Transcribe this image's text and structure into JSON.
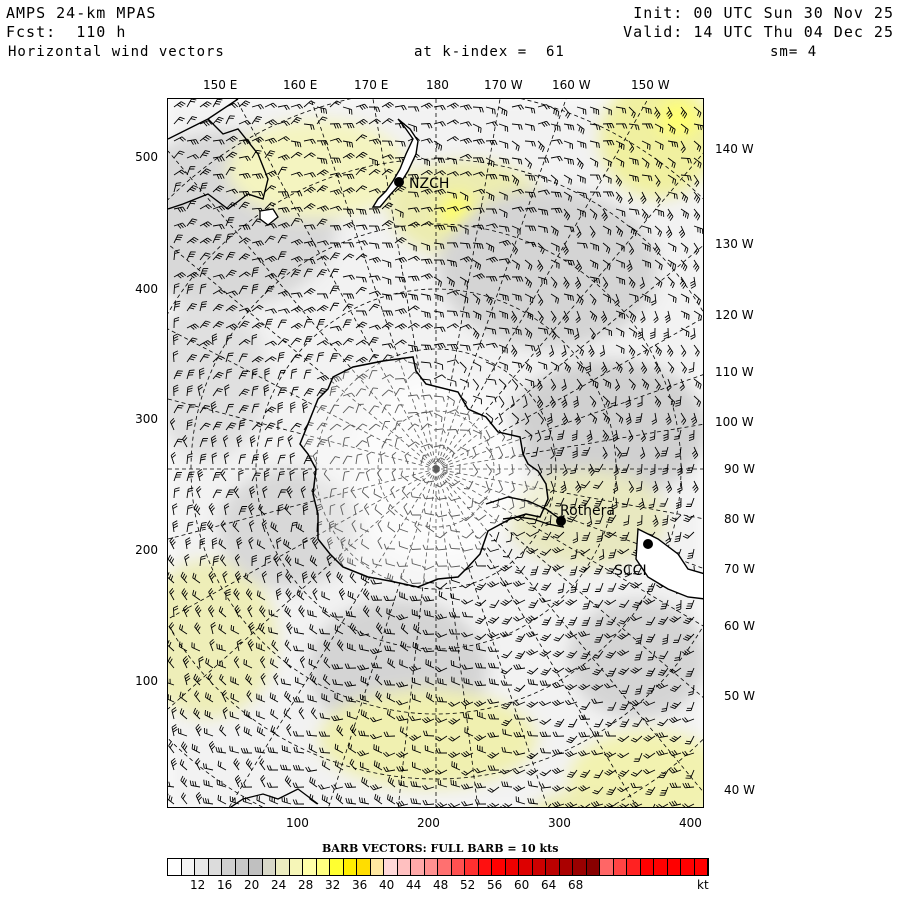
{
  "header": {
    "model": "AMPS 24-km MPAS",
    "fcst": "Fcst:  110 h",
    "field": "Horizontal wind vectors",
    "init": "Init: 00 UTC Sun 30 Nov 25",
    "valid": "Valid: 14 UTC Thu 04 Dec 25",
    "kindex": "at k-index =  61",
    "sm": "sm= 4"
  },
  "top_lon_labels": [
    "150 E",
    "160 E",
    "170 E",
    "180",
    "170 W",
    "160 W",
    "150 W"
  ],
  "right_lon_labels": [
    "140 W",
    "130 W",
    "120 W",
    "110 W",
    "100 W",
    "90 W",
    "80 W",
    "70 W",
    "60 W",
    "50 W",
    "40 W"
  ],
  "left_ticks": [
    "500",
    "400",
    "300",
    "200",
    "100"
  ],
  "bottom_ticks": [
    "100",
    "200",
    "300",
    "400"
  ],
  "stations": [
    {
      "id": "NZCH",
      "label": "NZCH"
    },
    {
      "id": "rothera",
      "label": "Rothera"
    },
    {
      "id": "scci",
      "label": "SCCI"
    }
  ],
  "legend": {
    "title": "BARB VECTORS:  FULL BARB = 10 kts",
    "ticks": [
      "12",
      "16",
      "20",
      "24",
      "28",
      "32",
      "36",
      "40",
      "44",
      "48",
      "52",
      "56",
      "60",
      "64",
      "68"
    ],
    "unit": "kt",
    "colors": [
      "#ffffff",
      "#f4f4f4",
      "#e8e8e8",
      "#dcdcdc",
      "#d0d0d0",
      "#c8c8c8",
      "#c0c0c0",
      "#d8d8c8",
      "#ececc0",
      "#f6f6b8",
      "#ffffa8",
      "#ffff80",
      "#ffff30",
      "#ffee00",
      "#ffdd00",
      "#ffe8a0",
      "#ffd8d8",
      "#ffc0c0",
      "#ffa8a8",
      "#ff9090",
      "#ff7070",
      "#ff5050",
      "#ff3030",
      "#ff1010",
      "#ff0000",
      "#ee0000",
      "#dd0000",
      "#cc0000",
      "#bb0000",
      "#aa0000",
      "#990000",
      "#880000",
      "#ff6666",
      "#ff4444",
      "#ff2222",
      "#ff0000",
      "#ff0000",
      "#ff0000",
      "#ff0000",
      "#ff0000"
    ]
  },
  "map": {
    "projection": "polar stereographic (south)",
    "content": "wind barbs over Antarctica and Southern Ocean"
  }
}
